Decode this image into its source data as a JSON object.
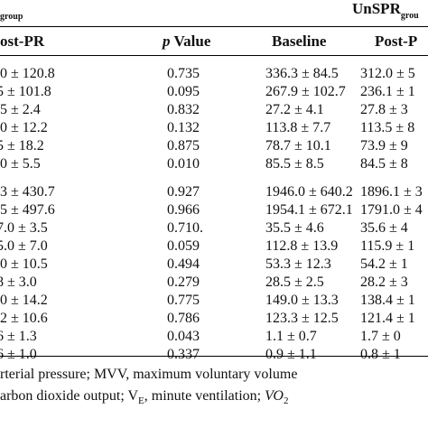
{
  "header": {
    "left_fragment": "group",
    "right_title": "UnSPR",
    "right_subscript": "grou"
  },
  "columns": {
    "post_pr_1": "ost-PR",
    "p_value_italic": "p",
    "p_value_rest": " Value",
    "baseline": "Baseline",
    "post_pr_2": "Post-P"
  },
  "rows": [
    {
      "post1": ".0 ± 120.8",
      "p": "0.735",
      "baseline": "336.3 ± 84.5",
      "post2": "312.0 ± 5"
    },
    {
      "post1": "5 ± 101.8",
      "p": "0.095",
      "baseline": "267.9 ± 102.7",
      "post2": "236.1 ± 1"
    },
    {
      "post1": ".5 ± 2.4",
      "p": "0.832",
      "baseline": "27.2 ± 4.1",
      "post2": "27.8 ± 3"
    },
    {
      "post1": ".0 ± 12.2",
      "p": "0.132",
      "baseline": "113.8 ± 7.7",
      "post2": "113.5 ± 8"
    },
    {
      "post1": "5 ± 18.2",
      "p": "0.875",
      "baseline": "78.7 ± 10.1",
      "post2": "73.9 ± 9"
    },
    {
      "post1": ".0 ± 5.5",
      "p": "0.010",
      "baseline": "85.5 ± 8.5",
      "post2": "84.5 ± 8"
    },
    {
      "post1": ".3 ± 430.7",
      "p": "0.927",
      "baseline": "1946.0 ± 640.2",
      "post2": "1896.1 ± 3"
    },
    {
      "post1": ".5 ± 497.6",
      "p": "0.966",
      "baseline": "1954.1 ± 672.1",
      "post2": "1791.0 ± 4"
    },
    {
      "post1": "7.0 ± 3.5",
      "p": "0.710.",
      "baseline": "35.5 ± 4.6",
      "post2": "35.6 ± 4"
    },
    {
      "post1": "5.0 ± 7.0",
      "p": "0.059",
      "baseline": "112.8 ± 13.9",
      "post2": "115.9 ± 1"
    },
    {
      "post1": ".0 ± 10.5",
      "p": "0.494",
      "baseline": "53.3 ± 12.3",
      "post2": "54.2 ± 1"
    },
    {
      "post1": "8 ± 3.0",
      "p": "0.279",
      "baseline": "28.5 ± 2.5",
      "post2": "28.2 ± 3"
    },
    {
      "post1": ".0 ± 14.2",
      "p": "0.775",
      "baseline": "149.0 ± 13.3",
      "post2": "138.4 ± 1"
    },
    {
      "post1": ".2 ± 10.6",
      "p": "0.786",
      "baseline": "123.3 ± 12.5",
      "post2": "121.4 ± 1"
    },
    {
      "post1": "6 ± 1.3",
      "p": "0.043",
      "baseline": "1.1 ± 0.7",
      "post2": "1.7 ± 0"
    },
    {
      "post1": "6 ± 1.0",
      "p": "0.337",
      "baseline": "0.9 ± 1.1",
      "post2": "0.8 ± 1"
    }
  ],
  "footnotes": {
    "line1": "rterial pressure; MVV, maximum voluntary volume",
    "line2_a": "arbon dioxide output; V",
    "line2_sub": "E",
    "line2_b": ", minute ventilation; ",
    "line2_it": "VO",
    "line2_sub2": "2"
  }
}
